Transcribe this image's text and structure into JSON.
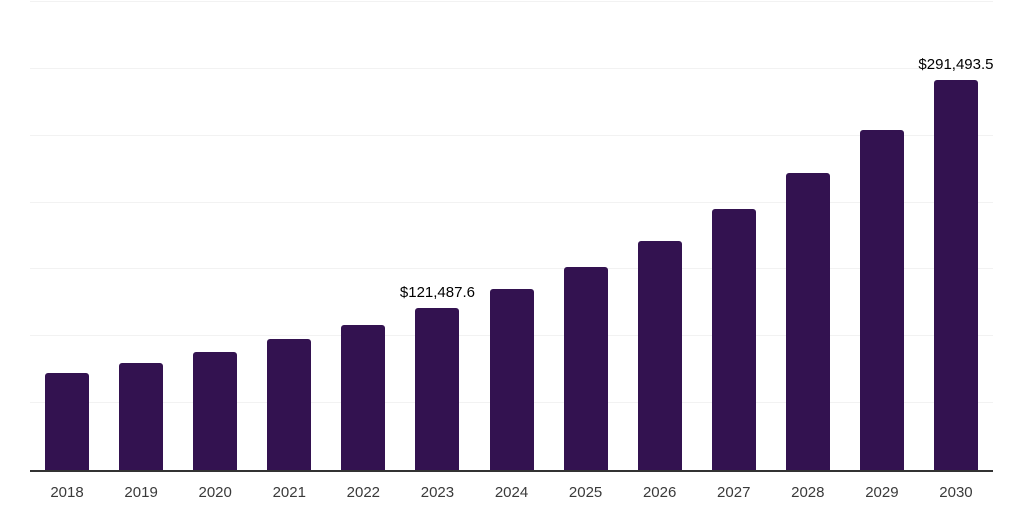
{
  "chart_data": {
    "type": "bar",
    "title": "",
    "xlabel": "",
    "ylabel": "",
    "categories": [
      "2018",
      "2019",
      "2020",
      "2021",
      "2022",
      "2023",
      "2024",
      "2025",
      "2026",
      "2027",
      "2028",
      "2029",
      "2030"
    ],
    "values": [
      72500,
      80000,
      88200,
      98000,
      108800,
      121487.6,
      135400,
      151800,
      171300,
      195200,
      222100,
      254300,
      291493.5
    ],
    "data_labels": [
      null,
      null,
      null,
      null,
      null,
      "$121,487.6",
      null,
      null,
      null,
      null,
      null,
      null,
      "$291,493.5"
    ],
    "ylim": [
      0,
      350000
    ],
    "gridline_step": 50000,
    "grid": true,
    "legend": "none",
    "y_axis_labels_visible": false,
    "colors": {
      "bar": "#331250",
      "gridline": "#f2f2f2",
      "axis_line": "#333333",
      "tick_label": "#3a3a3a",
      "value_label": "#000000",
      "background": "#ffffff"
    }
  }
}
